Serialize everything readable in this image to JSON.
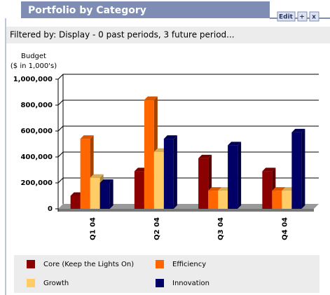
{
  "panel": {
    "title": "Portfolio by Category",
    "buttons": [
      "Edit",
      "+",
      "x"
    ],
    "filter": "Filtered by: Display - 0 past periods, 3 future period..."
  },
  "chart_data": {
    "type": "bar3d",
    "ylabel": [
      "Budget",
      "($ in 1,000's)"
    ],
    "categories": [
      "Q1 04",
      "Q2 04",
      "Q3 04",
      "Q4 04"
    ],
    "series": [
      {
        "name": "Core (Keep the Lights On)",
        "color": "#8b0000",
        "values": [
          100000,
          290000,
          390000,
          290000
        ]
      },
      {
        "name": "Efficiency",
        "color": "#ff6600",
        "values": [
          540000,
          840000,
          140000,
          140000
        ]
      },
      {
        "name": "Growth",
        "color": "#ffcc66",
        "values": [
          240000,
          440000,
          140000,
          140000
        ]
      },
      {
        "name": "Innovation",
        "color": "#000066",
        "values": [
          200000,
          540000,
          490000,
          590000
        ]
      }
    ],
    "ylim": [
      0,
      1000000
    ],
    "yticks": [
      0,
      {
        "value": 200000,
        "label": "200,000"
      },
      {
        "value": 400000,
        "label": "400,000"
      },
      {
        "value": 600000,
        "label": "600,000"
      },
      {
        "value": 800000,
        "label": "800,000"
      },
      {
        "value": 1000000,
        "label": "1,000,000"
      }
    ],
    "grid": true
  }
}
